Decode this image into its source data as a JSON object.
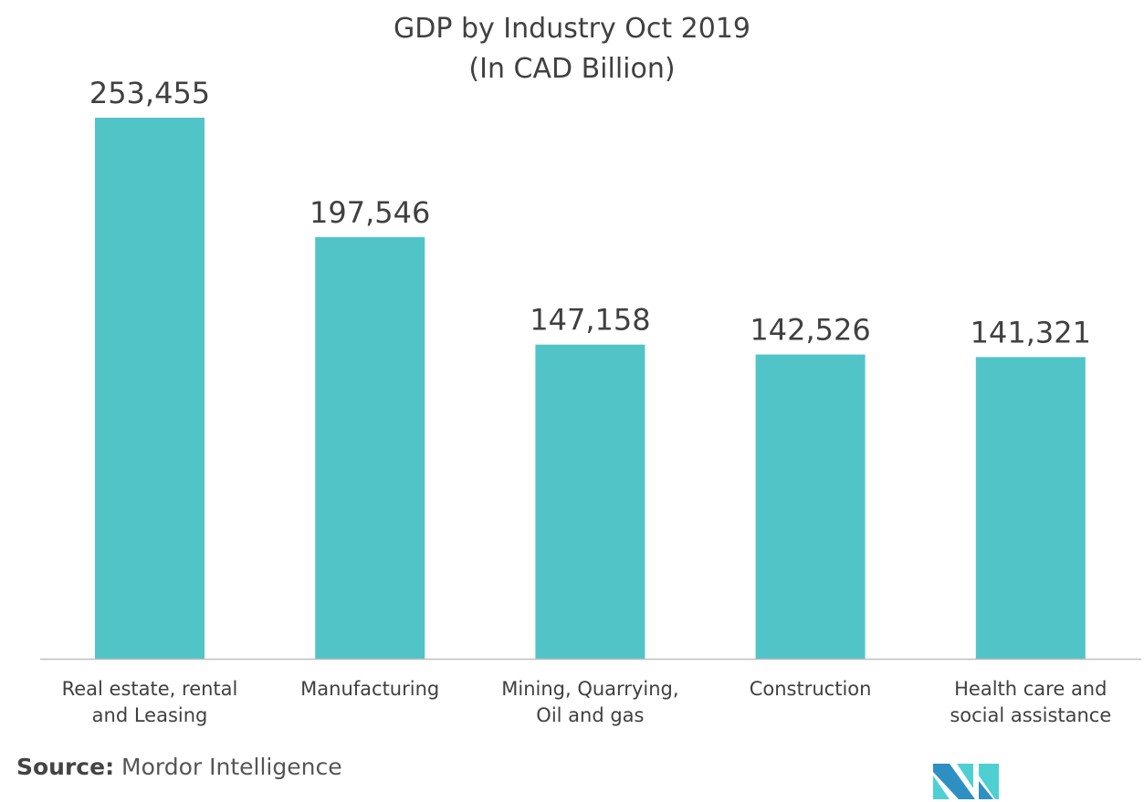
{
  "chart_data": {
    "type": "bar",
    "title": "GDP by Industry Oct 2019",
    "subtitle": "(In CAD Billion)",
    "categories": [
      [
        "Real estate, rental",
        "and Leasing"
      ],
      [
        "Manufacturing"
      ],
      [
        "Mining, Quarrying,",
        "Oil and gas"
      ],
      [
        "Construction"
      ],
      [
        "Health care and",
        "social assistance"
      ]
    ],
    "values": [
      253455,
      197546,
      147158,
      142526,
      141321
    ],
    "data_labels": [
      "253,455",
      "197,546",
      "147,158",
      "142,526",
      "141,321"
    ],
    "ylim": [
      0,
      253455
    ],
    "grid": false,
    "bar_color": "#51c4c8"
  },
  "source": {
    "label": "Source:",
    "text": "Mordor Intelligence"
  },
  "logo": {
    "colors": [
      "#2e8fc2",
      "#4ed0d3"
    ]
  }
}
